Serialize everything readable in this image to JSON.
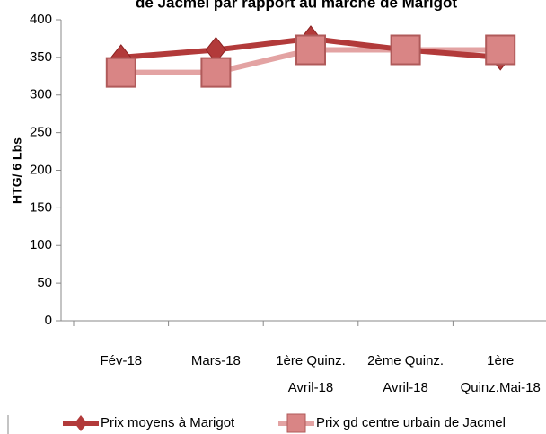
{
  "chart_data": {
    "type": "line",
    "title": "de Jacmel par rapport  au marché de Marigot",
    "y_label": "HTG/ 6 Lbs",
    "categories": [
      [
        "Fév-18"
      ],
      [
        "Mars-18"
      ],
      [
        "1ère Quinz.",
        "Avril-18"
      ],
      [
        "2ème Quinz.",
        "Avril-18"
      ],
      [
        "1ère",
        "Quinz.Mai-18"
      ]
    ],
    "series": [
      {
        "name": "Prix moyens à Marigot",
        "color": "#b23a3a",
        "marker": "diamond",
        "values": [
          350,
          360,
          375,
          360,
          350
        ]
      },
      {
        "name": "Prix gd centre urbain de Jacmel",
        "color": "#e3a3a3",
        "marker": "square",
        "values": [
          330,
          330,
          360,
          360,
          360
        ]
      }
    ],
    "ylim": [
      0,
      400
    ],
    "yticks": [
      0,
      50,
      100,
      150,
      200,
      250,
      300,
      350,
      400
    ],
    "legend": "bottom"
  }
}
